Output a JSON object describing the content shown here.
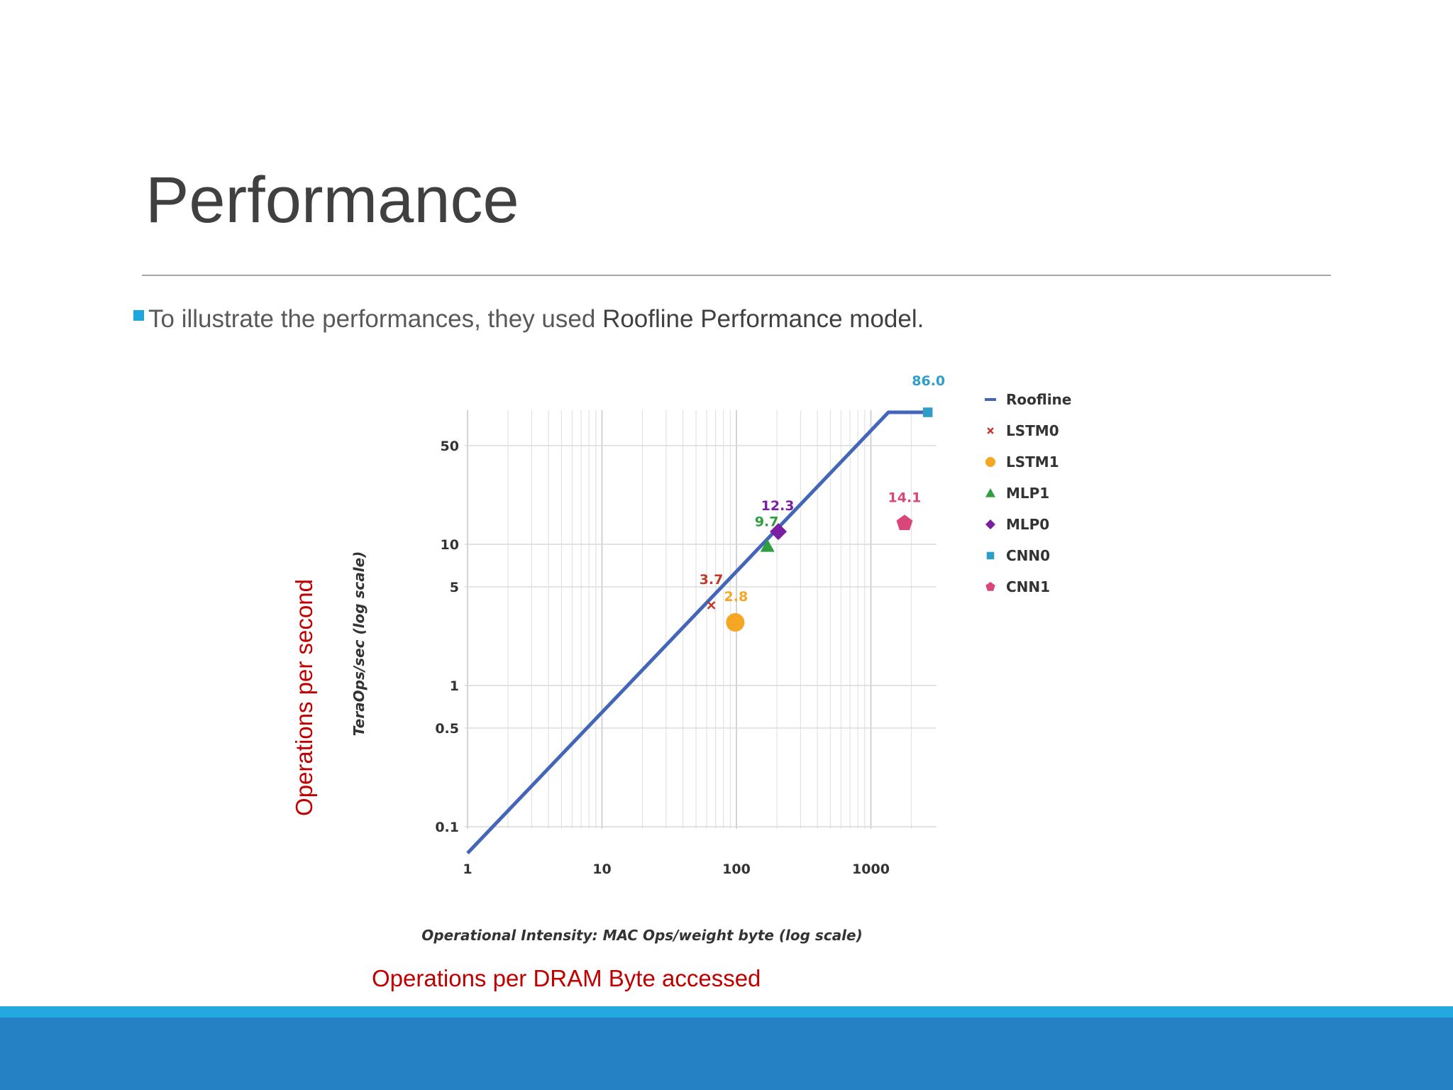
{
  "slide": {
    "title": "Performance",
    "bullet_text": "To illustrate the performances, they used ",
    "bullet_strong": "Roofline Performance model.",
    "annotation_y": "Operations per second",
    "annotation_x": "Operations per DRAM Byte accessed"
  },
  "colors": {
    "roofline": "#4466b8",
    "LSTM0": "#c0392b",
    "LSTM1": "#f5a623",
    "MLP1": "#2e9e3e",
    "MLP0": "#7b1fa2",
    "CNN0": "#2e9ec7",
    "CNN1": "#d9467a",
    "footer": "#2581c4",
    "bullet": "#1ca8dd"
  },
  "chart_data": {
    "type": "scatter",
    "xlabel": "Operational Intensity: MAC Ops/weight byte (log scale)",
    "ylabel": "TeraOps/sec (log scale)",
    "xscale": "log",
    "yscale": "log",
    "xlim": [
      1,
      2800
    ],
    "ylim": [
      0.06,
      92
    ],
    "x_ticks": [
      1,
      10,
      100,
      1000
    ],
    "x_tick_labels": [
      "1",
      "10",
      "100",
      "1000"
    ],
    "y_ticks": [
      0.1,
      0.5,
      1,
      5,
      10,
      50
    ],
    "y_tick_labels": [
      "0.1",
      "0.5",
      "1",
      "5",
      "10",
      "50"
    ],
    "grid": true,
    "legend_position": "right",
    "roofline": {
      "name": "Roofline",
      "points": [
        [
          1,
          0.065
        ],
        [
          1350,
          86
        ],
        [
          2800,
          86
        ]
      ]
    },
    "series": [
      {
        "name": "LSTM0",
        "marker": "x",
        "x": 65,
        "y": 3.7,
        "label": "3.7"
      },
      {
        "name": "LSTM1",
        "marker": "circle",
        "x": 98,
        "y": 2.8,
        "label": "2.8"
      },
      {
        "name": "MLP1",
        "marker": "triangle",
        "x": 170,
        "y": 9.7,
        "label": "9.7"
      },
      {
        "name": "MLP0",
        "marker": "diamond",
        "x": 205,
        "y": 12.3,
        "label": "12.3"
      },
      {
        "name": "CNN0",
        "marker": "square",
        "x": 2650,
        "y": 86.0,
        "label": "86.0"
      },
      {
        "name": "CNN1",
        "marker": "pentagon",
        "x": 1780,
        "y": 14.1,
        "label": "14.1"
      }
    ]
  }
}
